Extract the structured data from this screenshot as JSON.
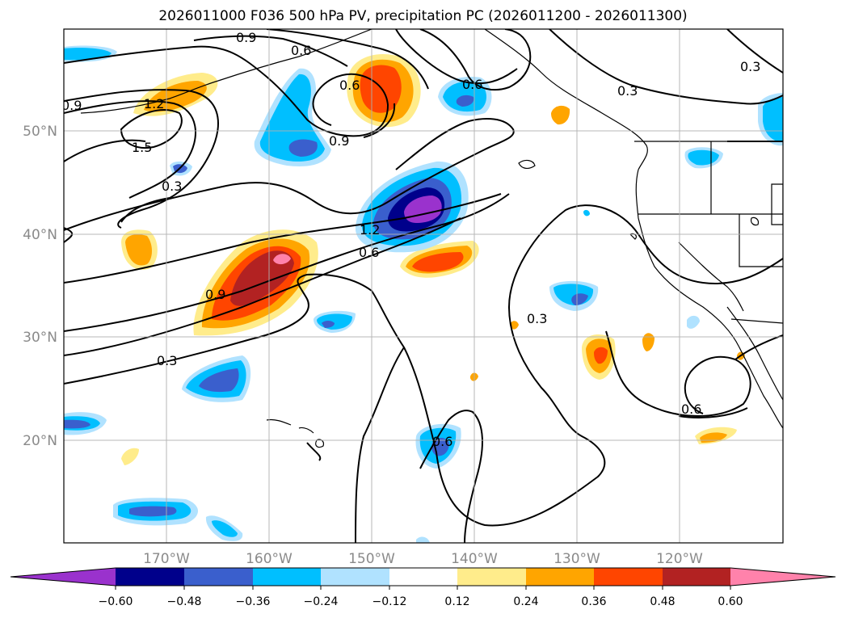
{
  "title": "2026011000 F036 500 hPa PV, precipitation PC (2026011200 - 2026011300)",
  "map": {
    "lat_labels": [
      "50°N",
      "40°N",
      "30°N",
      "20°N"
    ],
    "lon_labels": [
      "170°W",
      "160°W",
      "150°W",
      "140°W",
      "130°W",
      "120°W"
    ],
    "contour_labels": [
      "0.9",
      "0.6",
      "1.2",
      "1.5",
      "0.3",
      "0.9",
      "0.6",
      "0.9",
      "0.6",
      "0.3",
      "0.3",
      "1.2",
      "0.6",
      "0.9",
      "0.3",
      "0.3",
      "0.6",
      "0.6"
    ]
  },
  "colorbar": {
    "ticks": [
      "−0.60",
      "−0.48",
      "−0.36",
      "−0.24",
      "−0.12",
      "0.12",
      "0.24",
      "0.36",
      "0.48",
      "0.60"
    ],
    "colors": [
      "#9a32cd",
      "#00008b",
      "#3a5fcd",
      "#00bfff",
      "#b0e2ff",
      "#ffffff",
      "#ffec8b",
      "#ffa500",
      "#ff4500",
      "#b22222",
      "#ff82ab"
    ]
  }
}
